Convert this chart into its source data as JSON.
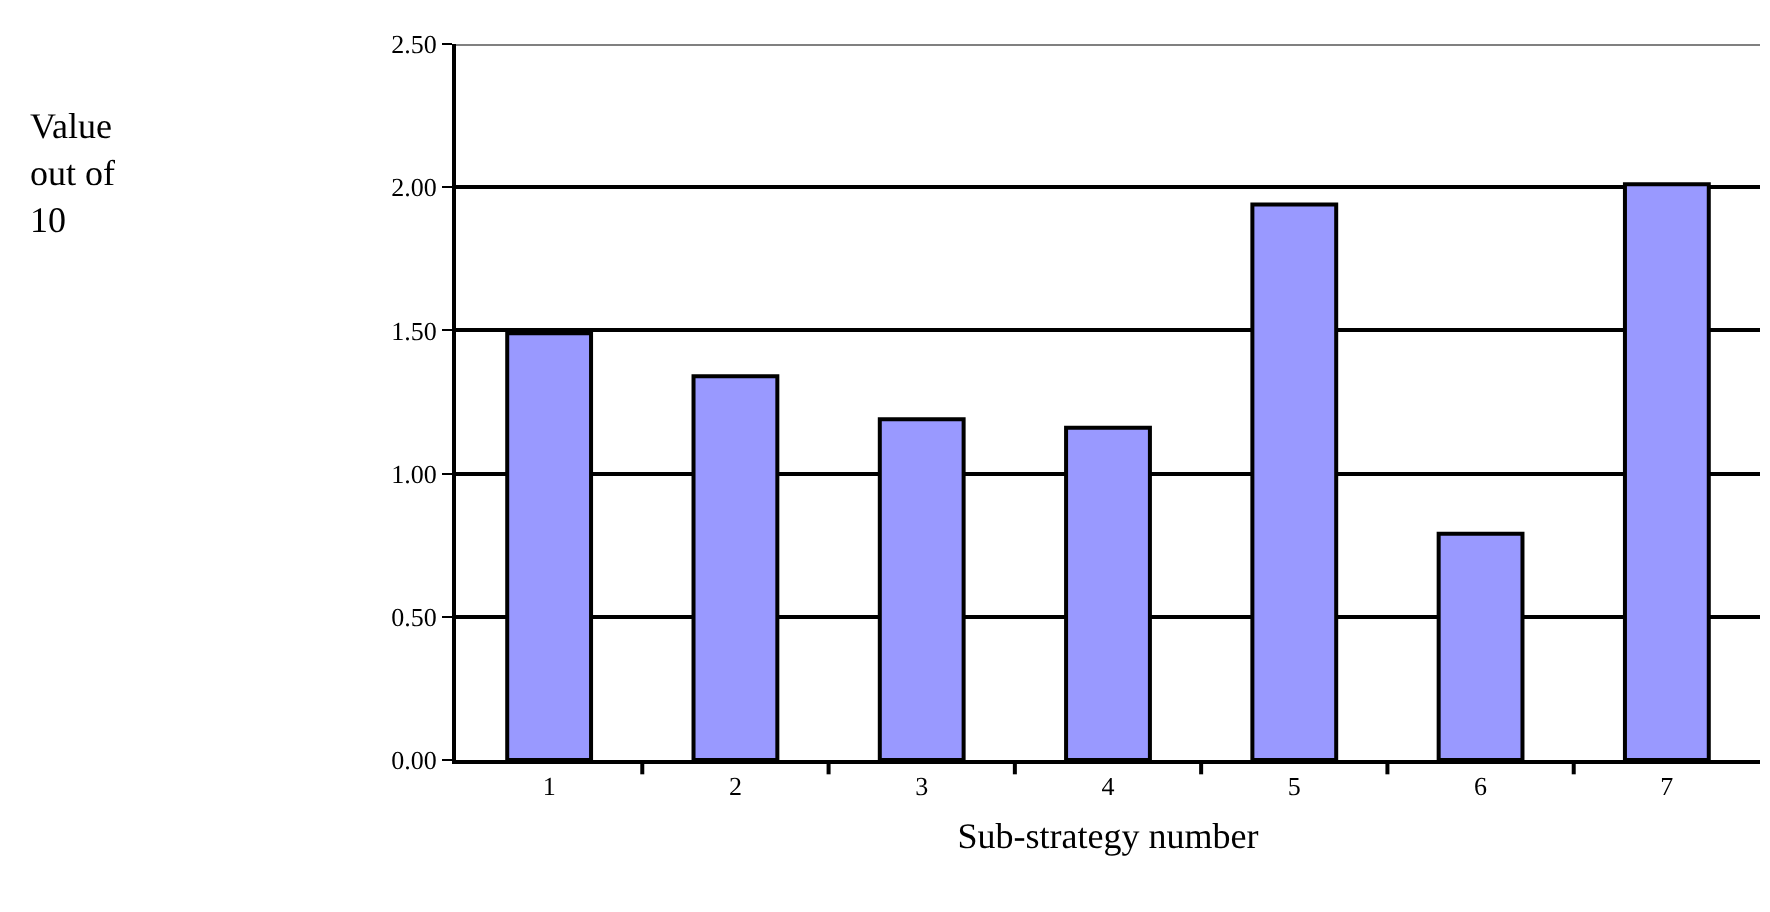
{
  "chart_data": {
    "type": "bar",
    "xlabel": "Sub-strategy number",
    "annotations": [
      "Value out of 10"
    ],
    "categories": [
      "1",
      "2",
      "3",
      "4",
      "5",
      "6",
      "7"
    ],
    "values": [
      1.49,
      1.34,
      1.19,
      1.16,
      1.94,
      0.79,
      2.01
    ],
    "color": "#9999ff",
    "ylim": [
      0,
      2.5
    ],
    "yticks": [
      {
        "value": 0,
        "label": "0.00"
      },
      {
        "value": 0.5,
        "label": "0.50"
      },
      {
        "value": 1,
        "label": "1.00"
      },
      {
        "value": 1.5,
        "label": "1.50"
      },
      {
        "value": 2,
        "label": "2.00"
      },
      {
        "value": 2.5,
        "label": "2.50"
      }
    ],
    "grid": "y"
  }
}
